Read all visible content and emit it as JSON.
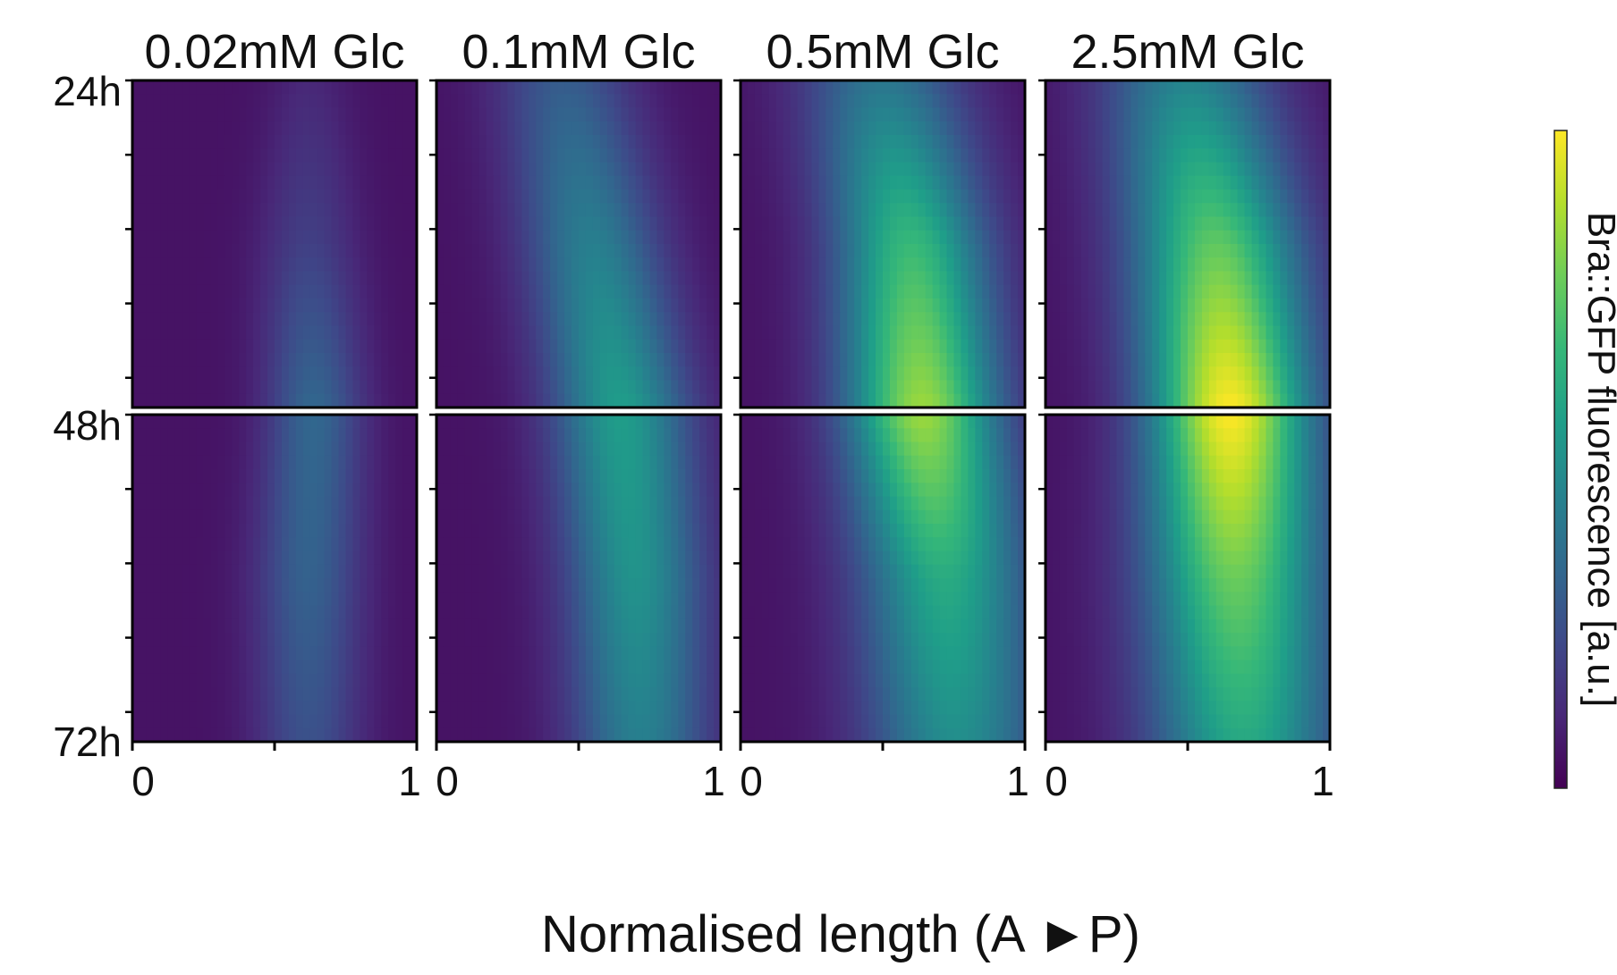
{
  "chart_data": {
    "type": "heatmap",
    "x_axis": {
      "label": "Normalised length (A ►P)",
      "ticks": [
        0,
        0.5,
        1
      ],
      "tick_labels": [
        "0",
        "",
        "1"
      ],
      "range": [
        0,
        1
      ]
    },
    "y_axis": {
      "unit": "h",
      "range": [
        24,
        72
      ],
      "tick_labels": [
        "24h",
        "48h",
        "72h"
      ],
      "tick_values": [
        24,
        48,
        72
      ],
      "direction": "top-to-bottom"
    },
    "colorbar": {
      "label": "Bra::GFP fluorescence [a.u.]",
      "colormap": "viridis",
      "range": [
        0,
        1
      ]
    },
    "panels": [
      {
        "title": "0.02mM Glc",
        "ridge": [
          {
            "t": 24,
            "center": 0.62,
            "width": 0.1,
            "peak": 0.06
          },
          {
            "t": 36,
            "center": 0.62,
            "width": 0.12,
            "peak": 0.14
          },
          {
            "t": 48,
            "center": 0.64,
            "width": 0.12,
            "peak": 0.28
          },
          {
            "t": 60,
            "center": 0.62,
            "width": 0.13,
            "peak": 0.26
          },
          {
            "t": 72,
            "center": 0.62,
            "width": 0.13,
            "peak": 0.2
          }
        ]
      },
      {
        "title": "0.1mM Glc",
        "ridge": [
          {
            "t": 24,
            "center": 0.45,
            "width": 0.17,
            "peak": 0.24
          },
          {
            "t": 36,
            "center": 0.55,
            "width": 0.17,
            "peak": 0.38
          },
          {
            "t": 48,
            "center": 0.65,
            "width": 0.17,
            "peak": 0.5
          },
          {
            "t": 60,
            "center": 0.7,
            "width": 0.17,
            "peak": 0.46
          },
          {
            "t": 72,
            "center": 0.72,
            "width": 0.17,
            "peak": 0.38
          }
        ]
      },
      {
        "title": "0.5mM Glc",
        "ridge": [
          {
            "t": 24,
            "center": 0.5,
            "width": 0.2,
            "peak": 0.34
          },
          {
            "t": 36,
            "center": 0.6,
            "width": 0.19,
            "peak": 0.62
          },
          {
            "t": 48,
            "center": 0.64,
            "width": 0.19,
            "peak": 0.8
          },
          {
            "t": 60,
            "center": 0.72,
            "width": 0.21,
            "peak": 0.56
          },
          {
            "t": 72,
            "center": 0.76,
            "width": 0.22,
            "peak": 0.44
          }
        ]
      },
      {
        "title": "2.5mM Glc",
        "ridge": [
          {
            "t": 24,
            "center": 0.5,
            "width": 0.21,
            "peak": 0.4
          },
          {
            "t": 36,
            "center": 0.6,
            "width": 0.21,
            "peak": 0.7
          },
          {
            "t": 48,
            "center": 0.65,
            "width": 0.2,
            "peak": 0.95
          },
          {
            "t": 60,
            "center": 0.67,
            "width": 0.22,
            "peak": 0.72
          },
          {
            "t": 72,
            "center": 0.7,
            "width": 0.23,
            "peak": 0.55
          }
        ]
      }
    ]
  }
}
